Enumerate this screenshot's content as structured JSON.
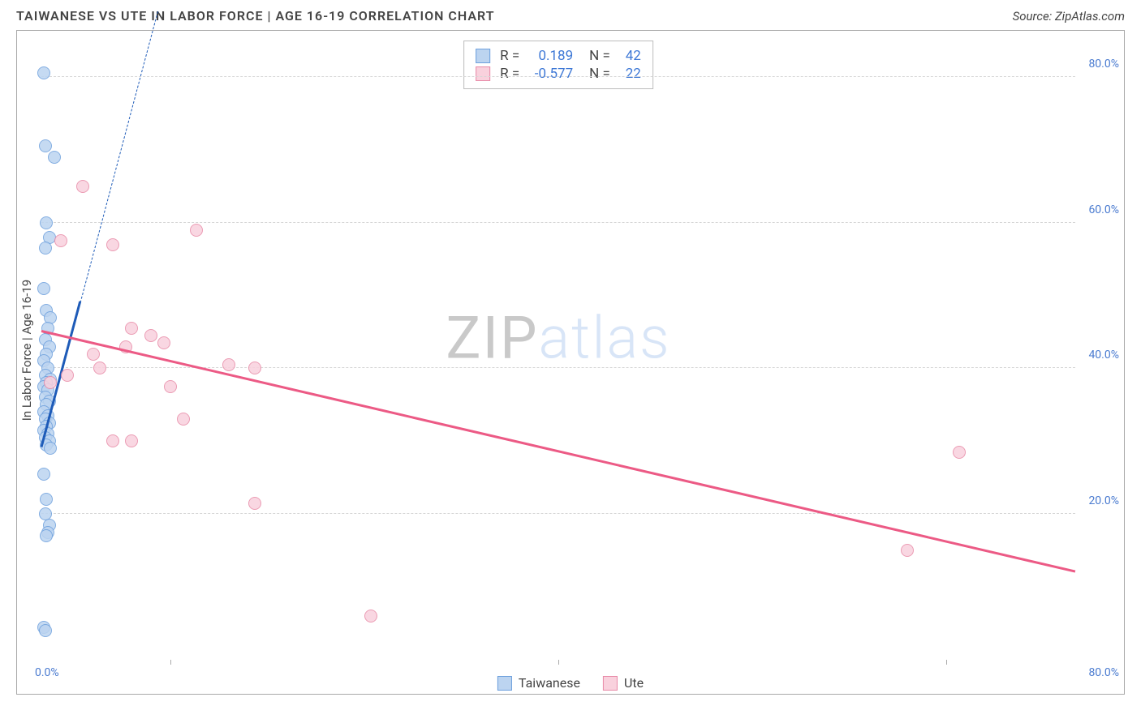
{
  "header": {
    "title": "TAIWANESE VS UTE IN LABOR FORCE | AGE 16-19 CORRELATION CHART",
    "source": "Source: ZipAtlas.com"
  },
  "axes": {
    "ylabel": "In Labor Force | Age 16-19",
    "xlim": [
      0,
      80
    ],
    "ylim": [
      0,
      85
    ],
    "xticks": [
      0,
      80
    ],
    "xtick_labels": [
      "0.0%",
      "80.0%"
    ],
    "xtick_minor_positions": [
      10,
      40,
      70
    ],
    "yticks": [
      20,
      40,
      60,
      80
    ],
    "ytick_labels": [
      "20.0%",
      "40.0%",
      "60.0%",
      "80.0%"
    ],
    "grid": true,
    "grid_color": "#d6d6d6",
    "tick_color": "#4a7bd0",
    "label_fontsize": 15,
    "tick_fontsize": 14,
    "background_color": "#ffffff",
    "border_color": "#a9a9a9"
  },
  "series": {
    "taiwanese": {
      "label": "Taiwanese",
      "color_fill": "#bcd4f0",
      "color_stroke": "#6ea0dd",
      "marker_radius": 8,
      "marker_opacity": 0.85,
      "points": [
        [
          0.2,
          80.5
        ],
        [
          0.3,
          70.5
        ],
        [
          1.0,
          69.0
        ],
        [
          0.4,
          60.0
        ],
        [
          0.6,
          58.0
        ],
        [
          0.3,
          56.5
        ],
        [
          0.2,
          51.0
        ],
        [
          0.4,
          48.0
        ],
        [
          0.7,
          47.0
        ],
        [
          0.5,
          45.5
        ],
        [
          0.3,
          44.0
        ],
        [
          0.6,
          43.0
        ],
        [
          0.4,
          42.0
        ],
        [
          0.2,
          41.0
        ],
        [
          0.5,
          40.0
        ],
        [
          0.3,
          39.0
        ],
        [
          0.7,
          38.5
        ],
        [
          0.4,
          38.0
        ],
        [
          0.2,
          37.5
        ],
        [
          0.5,
          37.0
        ],
        [
          0.3,
          36.0
        ],
        [
          0.6,
          35.5
        ],
        [
          0.4,
          35.0
        ],
        [
          0.2,
          34.0
        ],
        [
          0.5,
          33.5
        ],
        [
          0.3,
          33.0
        ],
        [
          0.6,
          32.5
        ],
        [
          0.4,
          32.0
        ],
        [
          0.2,
          31.5
        ],
        [
          0.5,
          31.0
        ],
        [
          0.3,
          30.5
        ],
        [
          0.6,
          30.0
        ],
        [
          0.4,
          29.5
        ],
        [
          0.7,
          29.0
        ],
        [
          0.2,
          25.5
        ],
        [
          0.4,
          22.0
        ],
        [
          0.3,
          20.0
        ],
        [
          0.6,
          18.5
        ],
        [
          0.5,
          17.5
        ],
        [
          0.4,
          17.0
        ],
        [
          0.2,
          4.5
        ],
        [
          0.3,
          4.0
        ]
      ],
      "trend": {
        "color": "#1e5bb8",
        "width": 3,
        "x_range": [
          0,
          3
        ],
        "y_range": [
          29,
          49
        ],
        "extend_dashed": {
          "enabled": true,
          "x_range": [
            3,
            9
          ],
          "y_range": [
            49,
            89
          ],
          "width": 1.5
        }
      }
    },
    "ute": {
      "label": "Ute",
      "color_fill": "#f9d1dd",
      "color_stroke": "#e88ba8",
      "marker_radius": 8,
      "marker_opacity": 0.85,
      "points": [
        [
          3.2,
          65.0
        ],
        [
          12.0,
          59.0
        ],
        [
          5.5,
          57.0
        ],
        [
          1.5,
          57.5
        ],
        [
          7.0,
          45.5
        ],
        [
          8.5,
          44.5
        ],
        [
          9.5,
          43.5
        ],
        [
          6.5,
          43.0
        ],
        [
          4.0,
          42.0
        ],
        [
          4.5,
          40.0
        ],
        [
          2.0,
          39.0
        ],
        [
          0.7,
          38.0
        ],
        [
          14.5,
          40.5
        ],
        [
          16.5,
          40.0
        ],
        [
          10.0,
          37.5
        ],
        [
          11.0,
          33.0
        ],
        [
          5.5,
          30.0
        ],
        [
          7.0,
          30.0
        ],
        [
          16.5,
          21.5
        ],
        [
          25.5,
          6.0
        ],
        [
          71.0,
          28.5
        ],
        [
          67.0,
          15.0
        ]
      ],
      "trend": {
        "color": "#ec5a85",
        "width": 3,
        "x_range": [
          0,
          80
        ],
        "y_range": [
          45,
          12
        ]
      }
    }
  },
  "legend_top": {
    "rows": [
      {
        "swatch_fill": "#bcd4f0",
        "swatch_stroke": "#6ea0dd",
        "r_label": "R =",
        "r_value": "0.189",
        "n_label": "N =",
        "n_value": "42"
      },
      {
        "swatch_fill": "#f9d1dd",
        "swatch_stroke": "#e88ba8",
        "r_label": "R =",
        "r_value": "-0.577",
        "n_label": "N =",
        "n_value": "22"
      }
    ],
    "value_color": "#3e78d6",
    "fontsize": 17
  },
  "legend_bottom": {
    "items": [
      {
        "swatch_fill": "#bcd4f0",
        "swatch_stroke": "#6ea0dd",
        "label": "Taiwanese"
      },
      {
        "swatch_fill": "#f9d1dd",
        "swatch_stroke": "#e88ba8",
        "label": "Ute"
      }
    ]
  },
  "watermark": {
    "part1": "ZIP",
    "part2": "atlas",
    "color1": "#c9c9c9",
    "color2": "#d8e5f7",
    "fontsize": 72
  }
}
